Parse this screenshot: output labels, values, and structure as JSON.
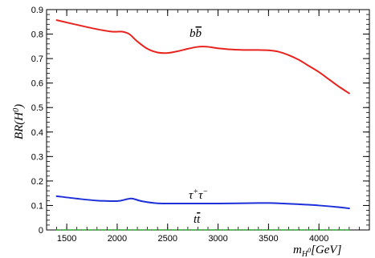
{
  "chart_data": {
    "type": "line",
    "title": "",
    "xlabel": "m_{H^0}[GeV]",
    "ylabel": "BR(H^0)",
    "xlim": [
      1300,
      4500
    ],
    "ylim": [
      0,
      0.9
    ],
    "xticks": [
      1500,
      2000,
      2500,
      3000,
      3500,
      4000
    ],
    "yticks": [
      0,
      0.1,
      0.2,
      0.3,
      0.4,
      0.5,
      0.6,
      0.7,
      0.8,
      0.9
    ],
    "xtick_labels": [
      "1500",
      "2000",
      "2500",
      "3000",
      "3500",
      "4000"
    ],
    "ytick_labels": [
      "0",
      "0.1",
      "0.2",
      "0.3",
      "0.4",
      "0.5",
      "0.6",
      "0.7",
      "0.8",
      "0.9"
    ],
    "grid": false,
    "series": [
      {
        "name": "b b̄",
        "color": "#e8231e",
        "x": [
          1400,
          1600,
          1800,
          1950,
          2050,
          2120,
          2200,
          2300,
          2400,
          2500,
          2600,
          2700,
          2800,
          2850,
          2900,
          3000,
          3100,
          3200,
          3300,
          3400,
          3500,
          3600,
          3700,
          3800,
          3900,
          4000,
          4100,
          4200,
          4300
        ],
        "y": [
          0.857,
          0.838,
          0.82,
          0.81,
          0.81,
          0.8,
          0.77,
          0.74,
          0.725,
          0.723,
          0.73,
          0.74,
          0.748,
          0.749,
          0.748,
          0.742,
          0.738,
          0.736,
          0.735,
          0.735,
          0.734,
          0.728,
          0.714,
          0.695,
          0.67,
          0.645,
          0.615,
          0.585,
          0.558
        ]
      },
      {
        "name": "τ⁺τ⁻",
        "color": "#1c2fd9",
        "x": [
          1400,
          1600,
          1800,
          2000,
          2100,
          2150,
          2250,
          2400,
          2600,
          2800,
          3000,
          3200,
          3400,
          3500,
          3600,
          3800,
          4000,
          4200,
          4300
        ],
        "y": [
          0.138,
          0.128,
          0.12,
          0.118,
          0.126,
          0.128,
          0.117,
          0.109,
          0.108,
          0.108,
          0.108,
          0.109,
          0.11,
          0.11,
          0.109,
          0.105,
          0.1,
          0.093,
          0.088
        ]
      },
      {
        "name": "t t̄",
        "color": "#2aa02a",
        "x": [
          1400,
          4300
        ],
        "y": [
          0.0,
          0.0
        ]
      }
    ],
    "annotations": [
      {
        "text_main": "b",
        "text_bar": "b",
        "x": 2780,
        "y": 0.79,
        "series": "bb"
      },
      {
        "text_main": "τ",
        "sup1": "+",
        "text_main2": "τ",
        "sup2": "−",
        "x": 2750,
        "y": 0.13,
        "series": "tautau"
      },
      {
        "text_main": "t",
        "text_bar": "t",
        "x": 2800,
        "y": 0.035,
        "series": "tt"
      }
    ]
  }
}
